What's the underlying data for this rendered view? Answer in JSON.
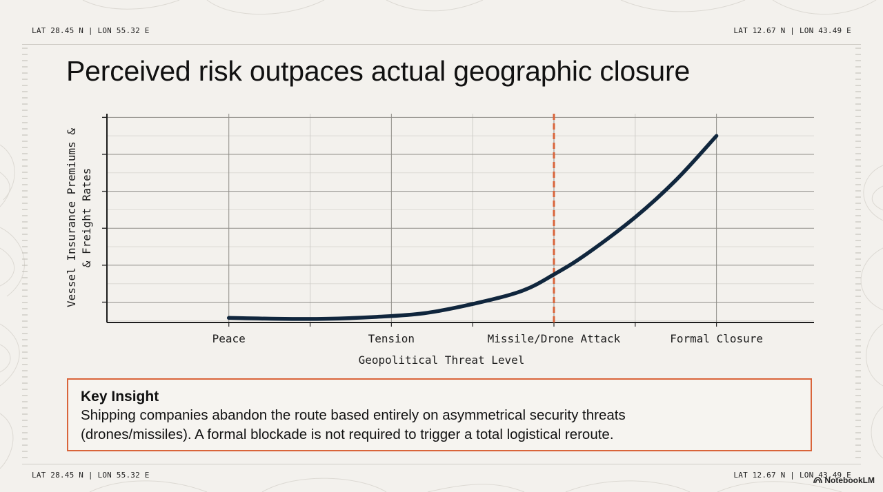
{
  "coords": {
    "top_left": "LAT 28.45 N | LON 55.32 E",
    "top_right": "LAT 12.67 N | LON 43.49 E",
    "bottom_left": "LAT 28.45 N | LON 55.32 E",
    "bottom_right": "LAT 12.67 N | LON 43.49 E"
  },
  "title": "Perceived risk outpaces actual geographic closure",
  "chart_data": {
    "type": "line",
    "title": "Perceived risk outpaces actual geographic closure",
    "xlabel": "Geopolitical Threat Level",
    "ylabel": "Vessel Insurance Premiums & & Freight Rates",
    "ylabel_lines": [
      "Vessel Insurance Premiums &",
      "& Freight Rates"
    ],
    "categories": [
      "Peace",
      "Tension",
      "Missile/Drone Attack",
      "Formal Closure"
    ],
    "x": [
      0,
      0.5,
      1,
      1.5,
      2,
      2.5,
      3
    ],
    "series": [
      {
        "name": "Insurance premiums & freight rates",
        "color": "#10263d",
        "points": [
          [
            0,
            0.15
          ],
          [
            0.3,
            0.1
          ],
          [
            0.6,
            0.1
          ],
          [
            0.9,
            0.2
          ],
          [
            1.2,
            0.4
          ],
          [
            1.5,
            0.9
          ],
          [
            1.8,
            1.6
          ],
          [
            2.0,
            2.5
          ],
          [
            2.2,
            3.6
          ],
          [
            2.5,
            5.6
          ],
          [
            2.75,
            7.6
          ],
          [
            3.0,
            10.0
          ]
        ]
      }
    ],
    "xlim": [
      -0.75,
      3.6
    ],
    "ylim": [
      -0.1,
      11.2
    ],
    "y_ticks": [
      1,
      3,
      5,
      7,
      9,
      11
    ],
    "threshold": {
      "x": 2,
      "color": "#d9643a",
      "style": "dashed"
    },
    "grid": true
  },
  "insight": {
    "heading": "Key Insight",
    "line1": "Shipping companies abandon the route based entirely on asymmetrical security threats",
    "line2": "(drones/missiles). A formal blockade is not required to trigger a total logistical reroute."
  },
  "brand": "NotebookLM",
  "colors": {
    "accent": "#d9643a",
    "line": "#10263d",
    "background": "#f3f1ed"
  }
}
